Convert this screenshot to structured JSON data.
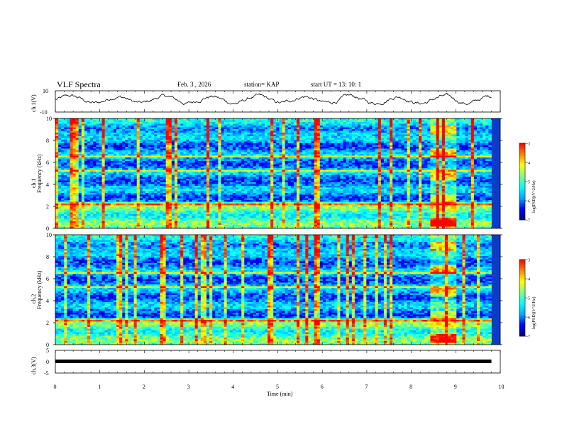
{
  "header": {
    "title": "VLF Spectra",
    "date": "Feb. 3 , 2026",
    "station": "station= KAP",
    "start": "start UT = 13: 10: 1"
  },
  "colors": {
    "line": "#000000",
    "colormap": [
      "#000080",
      "#0000ff",
      "#00aaff",
      "#00ffff",
      "#7fff7f",
      "#ffff00",
      "#ff8000",
      "#ff0000",
      "#ffffff"
    ]
  },
  "chart_data": [
    {
      "type": "line",
      "name": "ch1-waveform",
      "ylabel": "ch.1(V)",
      "ylim": [
        -10,
        10
      ],
      "yticks": [
        "10",
        "-10"
      ],
      "xlim": [
        0,
        10
      ],
      "description_values": "noisy voltage trace roughly between -5 and 7 V over 0 to 9.8 min"
    },
    {
      "type": "heatmap",
      "name": "ch1-spectrogram",
      "ylabel_channel": "ch.1",
      "ylabel": "Frequency (kHz)",
      "ylim": [
        0,
        10
      ],
      "yticks": [
        "0",
        "2",
        "4",
        "6",
        "8",
        "10"
      ],
      "xlim": [
        0,
        9.8
      ],
      "colorbar": {
        "label": "log(PSD)(V^2/Hz)",
        "range": [
          -7,
          -3
        ],
        "ticks": [
          "-3",
          "-4",
          "-5",
          "-6",
          "-7"
        ]
      },
      "burst_interval_min": [
        8.45,
        9.0
      ]
    },
    {
      "type": "heatmap",
      "name": "ch2-spectrogram",
      "ylabel_channel": "ch.2",
      "ylabel": "Frequency (kHz)",
      "ylim": [
        0,
        10
      ],
      "yticks": [
        "0",
        "2",
        "4",
        "6",
        "8",
        "10"
      ],
      "xlim": [
        0,
        9.8
      ],
      "colorbar": {
        "label": "log(PSD)(V^2/Hz)",
        "range": [
          -7,
          -3
        ],
        "ticks": [
          "-3",
          "-4",
          "-5",
          "-6",
          "-7"
        ]
      },
      "burst_interval_min": [
        8.45,
        9.0
      ]
    },
    {
      "type": "line",
      "name": "ch3-waveform",
      "ylabel": "ch.3(V)",
      "ylim": [
        -5,
        5
      ],
      "yticks": [
        "5",
        "0",
        "-5"
      ],
      "constant_value": -0.4,
      "xlim": [
        0,
        9.8
      ]
    }
  ],
  "xaxis": {
    "label": "Time (min)",
    "ticks": [
      "0",
      "1",
      "2",
      "3",
      "4",
      "5",
      "6",
      "7",
      "8",
      "9",
      "10"
    ]
  }
}
